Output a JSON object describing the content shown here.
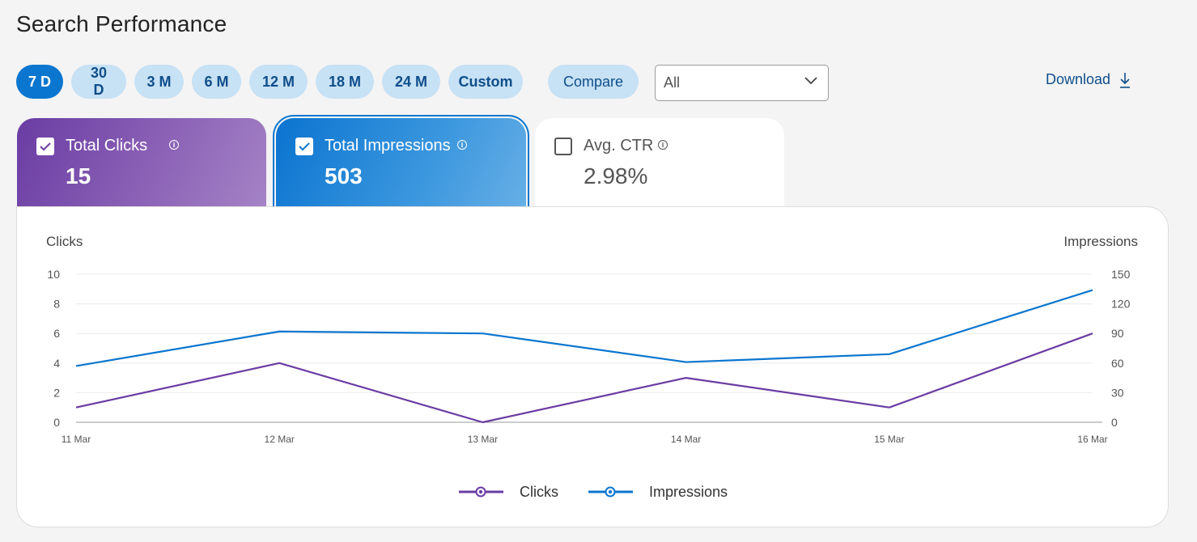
{
  "page": {
    "title": "Search Performance"
  },
  "ranges": [
    "7 D",
    "30 D",
    "3 M",
    "6 M",
    "12 M",
    "18 M",
    "24 M",
    "Custom"
  ],
  "active_range": "7 D",
  "compare_label": "Compare",
  "filter": {
    "selected": "All"
  },
  "download_label": "Download",
  "cards": {
    "clicks": {
      "label": "Total Clicks",
      "value": "15",
      "checked": true
    },
    "impressions": {
      "label": "Total Impressions",
      "value": "503",
      "checked": true
    },
    "ctr": {
      "label": "Avg. CTR",
      "value": "2.98%",
      "checked": false
    }
  },
  "colors": {
    "clicks": "#6a3ca3",
    "impressions": "#0b76cf",
    "accent": "#0b76cf"
  },
  "chart_data": {
    "type": "line",
    "x": [
      "11 Mar",
      "12 Mar",
      "13 Mar",
      "14 Mar",
      "15 Mar",
      "16 Mar"
    ],
    "y_left_label": "Clicks",
    "y_right_label": "Impressions",
    "y_left_ticks": [
      0,
      2,
      4,
      6,
      8,
      10
    ],
    "y_right_ticks": [
      0,
      30,
      60,
      90,
      120,
      150
    ],
    "ylim_left": [
      0,
      10
    ],
    "ylim_right": [
      0,
      150
    ],
    "series": [
      {
        "name": "Clicks",
        "axis": "left",
        "color": "#6a3ca3",
        "values": [
          1,
          4,
          0,
          3,
          1,
          6
        ]
      },
      {
        "name": "Impressions",
        "axis": "right",
        "color": "#0b76cf",
        "values": [
          57,
          92,
          90,
          61,
          69,
          134
        ]
      }
    ],
    "legend": "bottom-center",
    "grid": true
  }
}
